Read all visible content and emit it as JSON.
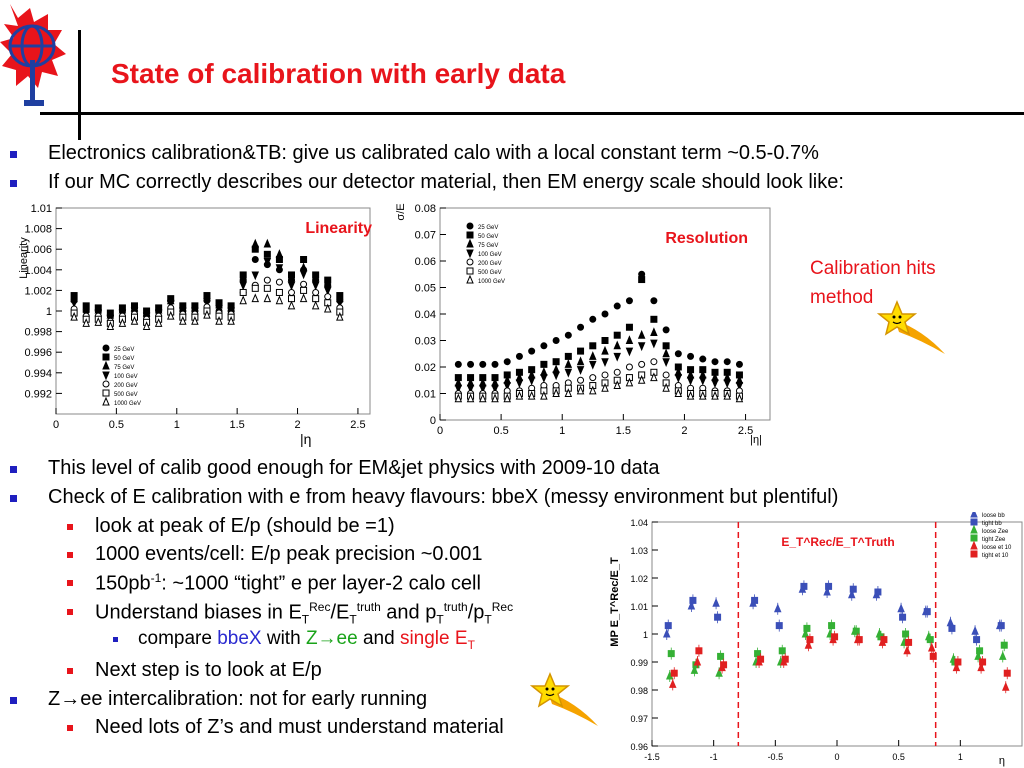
{
  "slide": {
    "title": "State of calibration with early data",
    "bullets": [
      {
        "text": "Electronics calibration&TB: give us calibrated calo with a local constant term ~0.5-0.7%"
      },
      {
        "text": "If our MC correctly describes our detector material, then EM energy scale should look like:"
      },
      {
        "text": "This level of calib good enough for EM&jet physics with 2009-10 data"
      },
      {
        "text": "Check of E calibration with e from heavy flavours: bbeX (messy environment but plentiful)"
      }
    ],
    "sub_bullets": {
      "peak": "look at peak of E/p (should be =1)",
      "events": "1000 events/cell: E/p peak precision ~0.001",
      "lumi_a": "150pb",
      "lumi_sup": "-1",
      "lumi_b": ": ~1000 “tight” e per layer-2 calo cell",
      "biases_a": "Understand biases in E",
      "biases_T1": "T",
      "biases_rec": "Rec",
      "biases_mid": "/E",
      "biases_T2": "T",
      "biases_truth": "truth",
      "biases_and": " and p",
      "biases_T3": "T",
      "biases_truth2": "truth",
      "biases_slash": "/p",
      "biases_T4": "T",
      "biases_rec2": "Rec",
      "compare_a": "compare ",
      "compare_bbex": "bbeX",
      "compare_with": " with ",
      "compare_z": "Z→ee",
      "compare_and": " and ",
      "compare_single": "single E",
      "compare_T": "T",
      "next": "Next step is to look at E/p",
      "zee_a": "Z→ee intercalibration: not for early running",
      "zee_b": "Need lots of Z’s and must understand material"
    },
    "calib_note_1": "Calibration hits",
    "calib_note_2": "method",
    "eta_label": "|η"
  },
  "colors": {
    "title": "#e8141b",
    "bullet_l1": "#1f1fbf",
    "bullet_l2": "#e8141b",
    "accent_green": "#19a319"
  },
  "icons": [
    "atlas-logo-icon",
    "shooting-star-icon"
  ],
  "chart_data": [
    {
      "type": "scatter",
      "title": "Linearity",
      "ylabel": "Linearity",
      "xlabel": "",
      "xlim": [
        0,
        2.6
      ],
      "ylim": [
        0.99,
        1.01
      ],
      "yticks": [
        "1.01",
        "1.008",
        "1.006",
        "1.004",
        "1.002",
        "1",
        "0.998",
        "0.996",
        "0.994",
        "0.992"
      ],
      "xticks": [
        "0",
        "0.5",
        "1",
        "1.5",
        "2",
        "2.5"
      ],
      "legend": [
        "25 GeV",
        "50 GeV",
        "75 GeV",
        "100 GeV",
        "200 GeV",
        "500 GeV",
        "1000 GeV"
      ],
      "x": [
        0.15,
        0.25,
        0.35,
        0.45,
        0.55,
        0.65,
        0.75,
        0.85,
        0.95,
        1.05,
        1.15,
        1.25,
        1.35,
        1.45,
        1.55,
        1.65,
        1.75,
        1.85,
        1.95,
        2.05,
        2.15,
        2.25,
        2.35
      ],
      "series": [
        {
          "values": [
            1.001,
            1.0,
            1.0,
            0.9995,
            1.0,
            1.0,
            0.9995,
            1.0,
            1.001,
            1.0,
            1.0,
            1.001,
            1.0,
            1.0,
            1.003,
            1.005,
            1.0045,
            1.004,
            1.003,
            1.004,
            1.003,
            1.0025,
            1.001
          ]
        },
        {
          "values": [
            1.0015,
            1.0005,
            1.0003,
            0.9998,
            1.0003,
            1.0005,
            1.0,
            1.0003,
            1.0012,
            1.0005,
            1.0005,
            1.0015,
            1.0008,
            1.0005,
            1.0035,
            1.006,
            1.0055,
            1.005,
            1.0035,
            1.005,
            1.0035,
            1.003,
            1.0015
          ]
        },
        {
          "values": [
            1.0012,
            1.0002,
            1.0001,
            0.9996,
            1.0001,
            1.0003,
            0.9998,
            1.0001,
            1.001,
            1.0003,
            1.0003,
            1.0013,
            1.0006,
            1.0003,
            1.0032,
            1.0065,
            1.0065,
            1.0055,
            1.0032,
            1.0042,
            1.0032,
            1.0027,
            1.0012
          ]
        },
        {
          "values": [
            1.0008,
            0.9998,
            0.9998,
            0.9993,
            0.9998,
            1.0,
            0.9995,
            0.9998,
            1.0007,
            1.0,
            1.0,
            1.0009,
            1.0002,
            1.0,
            1.0025,
            1.0035,
            1.0048,
            1.0042,
            1.0025,
            1.0036,
            1.0025,
            1.002,
            1.0008
          ]
        },
        {
          "values": [
            1.0002,
            0.9995,
            0.9995,
            0.999,
            0.9995,
            0.9997,
            0.9992,
            0.9995,
            1.0003,
            0.9997,
            0.9997,
            1.0004,
            0.9998,
            0.9997,
            1.0018,
            1.0025,
            1.003,
            1.0028,
            1.0018,
            1.0026,
            1.0018,
            1.0014,
            1.0003
          ]
        },
        {
          "values": [
            0.9998,
            0.9992,
            0.9992,
            0.9988,
            0.9992,
            0.9994,
            0.9989,
            0.9992,
            0.9999,
            0.9994,
            0.9994,
            1.0,
            0.9995,
            0.9994,
            1.0018,
            1.0022,
            1.0022,
            1.0018,
            1.0012,
            1.002,
            1.0012,
            1.0008,
            0.9999
          ]
        },
        {
          "values": [
            0.9994,
            0.9988,
            0.9989,
            0.9985,
            0.9988,
            0.999,
            0.9985,
            0.9988,
            0.9995,
            0.999,
            0.999,
            0.9996,
            0.999,
            0.999,
            1.001,
            1.0012,
            1.0012,
            1.001,
            1.0005,
            1.0012,
            1.0005,
            1.0002,
            0.9994
          ]
        }
      ]
    },
    {
      "type": "scatter",
      "title": "Resolution",
      "ylabel": "σ/E",
      "xlabel": "|η|",
      "xlim": [
        0,
        2.7
      ],
      "ylim": [
        0,
        0.08
      ],
      "yticks": [
        "0.08",
        "0.07",
        "0.06",
        "0.05",
        "0.04",
        "0.03",
        "0.02",
        "0.01",
        "0"
      ],
      "xticks": [
        "0",
        "0.5",
        "1",
        "1.5",
        "2",
        "2.5"
      ],
      "legend": [
        "25 GeV",
        "50 GeV",
        "75 GeV",
        "100 GeV",
        "200 GeV",
        "500 GeV",
        "1000 GeV"
      ],
      "x": [
        0.15,
        0.25,
        0.35,
        0.45,
        0.55,
        0.65,
        0.75,
        0.85,
        0.95,
        1.05,
        1.15,
        1.25,
        1.35,
        1.45,
        1.55,
        1.65,
        1.75,
        1.85,
        1.95,
        2.05,
        2.15,
        2.25,
        2.35,
        2.45
      ],
      "series": [
        {
          "values": [
            0.021,
            0.021,
            0.021,
            0.021,
            0.022,
            0.024,
            0.026,
            0.028,
            0.03,
            0.032,
            0.035,
            0.038,
            0.04,
            0.043,
            0.045,
            0.055,
            0.045,
            0.034,
            0.025,
            0.024,
            0.023,
            0.022,
            0.022,
            0.021
          ]
        },
        {
          "values": [
            0.016,
            0.016,
            0.016,
            0.016,
            0.017,
            0.018,
            0.019,
            0.021,
            0.022,
            0.024,
            0.026,
            0.028,
            0.03,
            0.032,
            0.035,
            0.053,
            0.038,
            0.028,
            0.02,
            0.019,
            0.019,
            0.018,
            0.018,
            0.017
          ]
        },
        {
          "values": [
            0.014,
            0.014,
            0.014,
            0.014,
            0.015,
            0.016,
            0.017,
            0.018,
            0.019,
            0.021,
            0.022,
            0.024,
            0.026,
            0.028,
            0.03,
            0.032,
            0.033,
            0.025,
            0.018,
            0.017,
            0.017,
            0.016,
            0.016,
            0.015
          ]
        },
        {
          "values": [
            0.012,
            0.012,
            0.012,
            0.012,
            0.013,
            0.014,
            0.015,
            0.016,
            0.017,
            0.018,
            0.019,
            0.021,
            0.022,
            0.024,
            0.026,
            0.028,
            0.029,
            0.022,
            0.016,
            0.015,
            0.015,
            0.014,
            0.014,
            0.013
          ]
        },
        {
          "values": [
            0.01,
            0.01,
            0.01,
            0.01,
            0.011,
            0.011,
            0.012,
            0.013,
            0.013,
            0.014,
            0.015,
            0.016,
            0.017,
            0.018,
            0.02,
            0.021,
            0.022,
            0.017,
            0.013,
            0.012,
            0.012,
            0.011,
            0.011,
            0.011
          ]
        },
        {
          "values": [
            0.009,
            0.009,
            0.009,
            0.009,
            0.009,
            0.01,
            0.01,
            0.011,
            0.011,
            0.012,
            0.012,
            0.013,
            0.014,
            0.015,
            0.016,
            0.017,
            0.018,
            0.014,
            0.011,
            0.01,
            0.01,
            0.01,
            0.01,
            0.009
          ]
        },
        {
          "values": [
            0.008,
            0.008,
            0.008,
            0.008,
            0.008,
            0.009,
            0.009,
            0.009,
            0.01,
            0.01,
            0.011,
            0.011,
            0.012,
            0.013,
            0.014,
            0.015,
            0.016,
            0.012,
            0.01,
            0.009,
            0.009,
            0.009,
            0.009,
            0.008
          ]
        }
      ]
    },
    {
      "type": "scatter",
      "title": "E_T^Rec/E_T^Truth",
      "ylabel": "MP E_T^Rec/E_T",
      "xlabel": "η",
      "xlim": [
        -1.5,
        1.5
      ],
      "ylim": [
        0.96,
        1.04
      ],
      "yticks": [
        "1.04",
        "1.03",
        "1.02",
        "1.01",
        "1",
        "0.99",
        "0.98",
        "0.97",
        "0.96"
      ],
      "xticks": [
        "-1.5",
        "-1",
        "-0.5",
        "0",
        "0.5",
        "1"
      ],
      "legend": [
        "loose bb",
        "tight bb",
        "loose Zee",
        "tight Zee",
        "loose et 10",
        "tight et 10"
      ],
      "colors": [
        "#3b4fb8",
        "#3b4fb8",
        "#35b035",
        "#35b035",
        "#e02020",
        "#e02020"
      ],
      "x": [
        -1.35,
        -1.15,
        -0.95,
        -0.65,
        -0.45,
        -0.25,
        -0.05,
        0.15,
        0.35,
        0.55,
        0.75,
        0.95,
        1.15,
        1.35
      ],
      "series": [
        {
          "values": [
            1.0,
            1.01,
            1.011,
            1.011,
            1.009,
            1.016,
            1.015,
            1.014,
            1.014,
            1.009,
            1.008,
            1.004,
            1.001,
            1.003
          ]
        },
        {
          "values": [
            1.003,
            1.012,
            1.006,
            1.012,
            1.003,
            1.017,
            1.017,
            1.016,
            1.015,
            1.006,
            1.008,
            1.002,
            0.998,
            1.003
          ]
        },
        {
          "values": [
            0.985,
            0.987,
            0.986,
            0.99,
            0.99,
            1.0,
            1.0,
            1.001,
            1.0,
            0.997,
            0.999,
            0.991,
            0.992,
            0.992
          ]
        },
        {
          "values": [
            0.993,
            0.989,
            0.992,
            0.993,
            0.994,
            1.002,
            1.003,
            1.001,
            0.999,
            1.0,
            0.998,
            0.99,
            0.994,
            0.996
          ]
        },
        {
          "values": [
            0.982,
            0.99,
            0.988,
            0.99,
            0.99,
            0.996,
            0.998,
            0.998,
            0.997,
            0.994,
            0.995,
            0.988,
            0.988,
            0.981
          ]
        },
        {
          "values": [
            0.986,
            0.994,
            0.989,
            0.991,
            0.991,
            0.998,
            0.999,
            0.998,
            0.998,
            0.997,
            0.992,
            0.99,
            0.99,
            0.986
          ]
        }
      ],
      "vlines": [
        -0.8,
        0.8
      ]
    }
  ]
}
